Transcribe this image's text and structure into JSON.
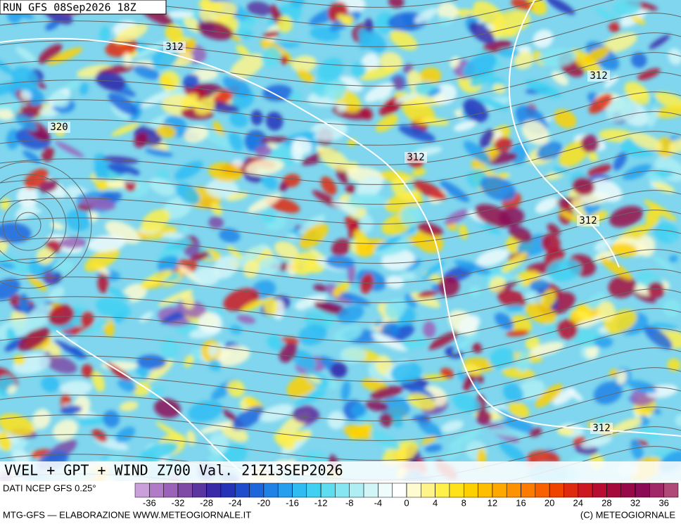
{
  "header": {
    "run": "RUN GFS 08Sep2026 18Z"
  },
  "map": {
    "contour_labels": [
      "312",
      "312",
      "312",
      "312",
      "312",
      "320"
    ],
    "title": "VVEL + GPT + WIND Z700 Val. 21Z13SEP2026"
  },
  "colorbar": {
    "source": "DATI NCEP GFS 0.25°",
    "lim": [
      -38,
      38
    ],
    "ticks": [
      -36,
      -32,
      -28,
      -24,
      -20,
      -16,
      -12,
      -8,
      -4,
      0,
      4,
      8,
      12,
      16,
      20,
      24,
      28,
      32,
      36
    ],
    "colors": [
      "#c9a0dc",
      "#b07cc8",
      "#9a62b8",
      "#7e4aa6",
      "#5c36a0",
      "#3a2aa8",
      "#2432b8",
      "#1f4ccc",
      "#1e66dc",
      "#1f82e6",
      "#26a0ee",
      "#2fbcf2",
      "#3fd0f2",
      "#5edcf0",
      "#86e6f2",
      "#aeeef4",
      "#d2f6f8",
      "#eefcfc",
      "#ffffff",
      "#fffbd0",
      "#fff48a",
      "#fff04a",
      "#ffe21a",
      "#ffd000",
      "#ffbe00",
      "#ffa800",
      "#ff9200",
      "#ff7a00",
      "#f86000",
      "#ee4400",
      "#e02a10",
      "#cc1820",
      "#b80c30",
      "#a6083c",
      "#980848",
      "#8c0a56",
      "#a02868",
      "#b04878"
    ]
  },
  "footer": {
    "left": "MTG-GFS — ELABORAZIONE WWW.METEOGIORNALE.IT",
    "right": "(C) METEOGIORNALE"
  }
}
